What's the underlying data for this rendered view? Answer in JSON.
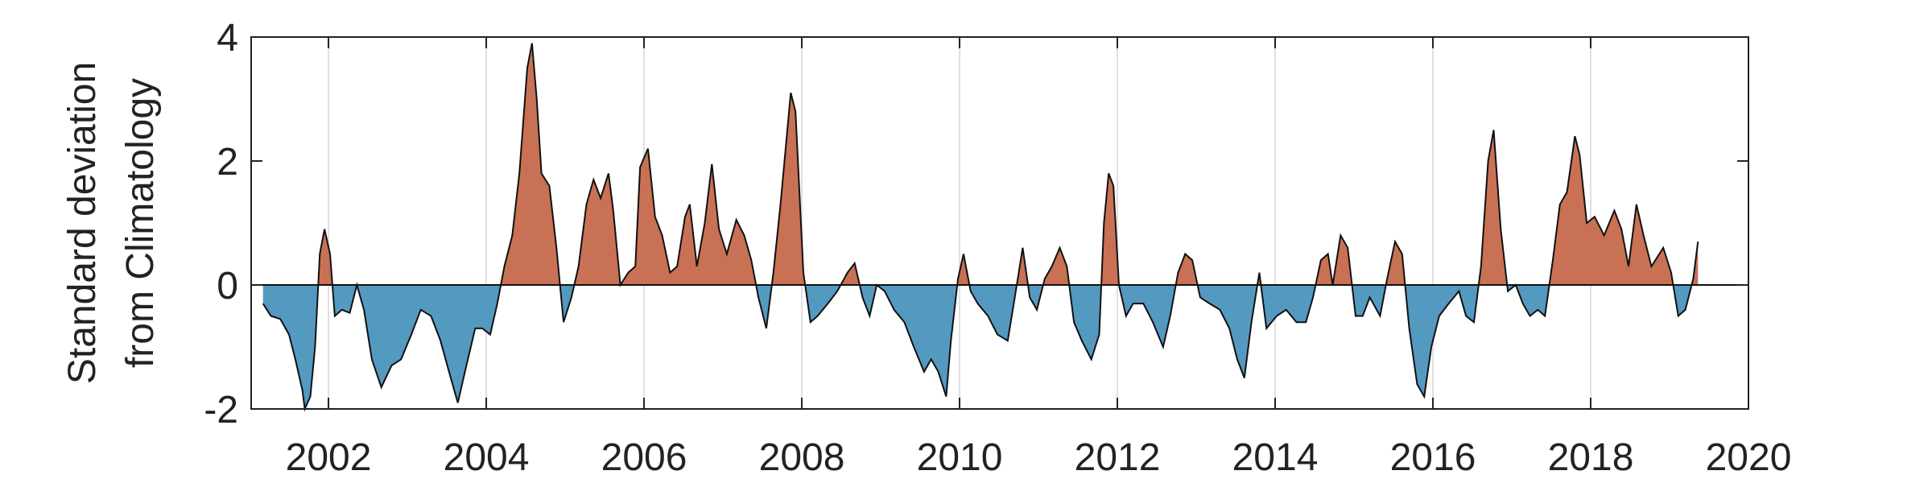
{
  "chart_data": {
    "type": "area",
    "ylabel": [
      "Standard deviation",
      "from Climatology"
    ],
    "xlim": [
      2001.02,
      2020
    ],
    "ylim": [
      -2,
      4
    ],
    "xticks": [
      2002,
      2004,
      2006,
      2008,
      2010,
      2012,
      2014,
      2016,
      2018,
      2020
    ],
    "yticks": [
      -2,
      0,
      2,
      4
    ],
    "grid": true,
    "positive_color": "#c87155",
    "negative_color": "#5499c0",
    "line_color": "#111111",
    "x": [
      2001.17,
      2001.27,
      2001.39,
      2001.5,
      2001.58,
      2001.67,
      2001.7,
      2001.77,
      2001.83,
      2001.89,
      2001.95,
      2002.02,
      2002.08,
      2002.17,
      2002.27,
      2002.36,
      2002.45,
      2002.55,
      2002.67,
      2002.8,
      2002.92,
      2003.05,
      2003.17,
      2003.3,
      2003.42,
      2003.55,
      2003.64,
      2003.73,
      2003.86,
      2003.95,
      2004.05,
      2004.14,
      2004.23,
      2004.33,
      2004.42,
      2004.52,
      2004.58,
      2004.64,
      2004.7,
      2004.8,
      2004.89,
      2004.98,
      2005.08,
      2005.17,
      2005.27,
      2005.36,
      2005.45,
      2005.55,
      2005.61,
      2005.7,
      2005.8,
      2005.89,
      2005.95,
      2006.05,
      2006.14,
      2006.23,
      2006.33,
      2006.42,
      2006.52,
      2006.58,
      2006.67,
      2006.77,
      2006.86,
      2006.95,
      2007.05,
      2007.17,
      2007.27,
      2007.36,
      2007.45,
      2007.55,
      2007.64,
      2007.73,
      2007.86,
      2007.92,
      2008.02,
      2008.11,
      2008.2,
      2008.33,
      2008.45,
      2008.58,
      2008.67,
      2008.77,
      2008.86,
      2008.95,
      2009.05,
      2009.17,
      2009.3,
      2009.42,
      2009.55,
      2009.64,
      2009.73,
      2009.83,
      2009.89,
      2009.98,
      2010.05,
      2010.14,
      2010.23,
      2010.36,
      2010.48,
      2010.61,
      2010.7,
      2010.8,
      2010.89,
      2010.98,
      2011.08,
      2011.17,
      2011.27,
      2011.36,
      2011.45,
      2011.55,
      2011.67,
      2011.77,
      2011.83,
      2011.89,
      2011.95,
      2012.02,
      2012.11,
      2012.2,
      2012.33,
      2012.45,
      2012.58,
      2012.67,
      2012.77,
      2012.86,
      2012.95,
      2013.05,
      2013.17,
      2013.3,
      2013.42,
      2013.52,
      2013.61,
      2013.7,
      2013.8,
      2013.89,
      2014.02,
      2014.14,
      2014.27,
      2014.39,
      2014.48,
      2014.58,
      2014.67,
      2014.73,
      2014.83,
      2014.92,
      2015.02,
      2015.11,
      2015.2,
      2015.33,
      2015.42,
      2015.52,
      2015.61,
      2015.7,
      2015.8,
      2015.89,
      2015.98,
      2016.08,
      2016.2,
      2016.33,
      2016.42,
      2016.52,
      2016.61,
      2016.7,
      2016.77,
      2016.86,
      2016.95,
      2017.05,
      2017.14,
      2017.23,
      2017.33,
      2017.42,
      2017.52,
      2017.61,
      2017.7,
      2017.8,
      2017.86,
      2017.95,
      2018.05,
      2018.17,
      2018.3,
      2018.39,
      2018.48,
      2018.58,
      2018.67,
      2018.77,
      2018.92,
      2019.02,
      2019.11,
      2019.2,
      2019.3,
      2019.36
    ],
    "values": [
      -0.3,
      -0.5,
      -0.55,
      -0.8,
      -1.2,
      -1.7,
      -2.0,
      -1.8,
      -1.0,
      0.5,
      0.9,
      0.5,
      -0.5,
      -0.4,
      -0.45,
      0.0,
      -0.4,
      -1.2,
      -1.65,
      -1.3,
      -1.2,
      -0.8,
      -0.4,
      -0.5,
      -0.9,
      -1.5,
      -1.9,
      -1.4,
      -0.7,
      -0.7,
      -0.8,
      -0.3,
      0.3,
      0.8,
      1.8,
      3.5,
      3.9,
      3.0,
      1.8,
      1.6,
      0.6,
      -0.6,
      -0.2,
      0.3,
      1.3,
      1.7,
      1.4,
      1.8,
      1.2,
      0.0,
      0.2,
      0.3,
      1.9,
      2.2,
      1.1,
      0.8,
      0.2,
      0.3,
      1.1,
      1.3,
      0.3,
      1.0,
      1.95,
      0.9,
      0.5,
      1.05,
      0.8,
      0.4,
      -0.2,
      -0.7,
      0.2,
      1.3,
      3.1,
      2.8,
      0.2,
      -0.6,
      -0.5,
      -0.3,
      -0.1,
      0.2,
      0.35,
      -0.2,
      -0.5,
      0.0,
      -0.1,
      -0.4,
      -0.6,
      -1.0,
      -1.4,
      -1.2,
      -1.4,
      -1.8,
      -0.9,
      0.1,
      0.5,
      -0.1,
      -0.3,
      -0.5,
      -0.8,
      -0.9,
      -0.2,
      0.6,
      -0.2,
      -0.4,
      0.1,
      0.3,
      0.6,
      0.3,
      -0.6,
      -0.9,
      -1.2,
      -0.8,
      1.0,
      1.8,
      1.6,
      0.0,
      -0.5,
      -0.3,
      -0.3,
      -0.6,
      -1.0,
      -0.5,
      0.2,
      0.5,
      0.4,
      -0.2,
      -0.3,
      -0.4,
      -0.7,
      -1.2,
      -1.5,
      -0.6,
      0.2,
      -0.7,
      -0.5,
      -0.4,
      -0.6,
      -0.6,
      -0.2,
      0.4,
      0.5,
      0.0,
      0.8,
      0.6,
      -0.5,
      -0.5,
      -0.2,
      -0.5,
      0.1,
      0.7,
      0.5,
      -0.7,
      -1.6,
      -1.8,
      -1.0,
      -0.5,
      -0.3,
      -0.1,
      -0.5,
      -0.6,
      0.3,
      2.0,
      2.5,
      0.9,
      -0.1,
      0.0,
      -0.3,
      -0.5,
      -0.4,
      -0.5,
      0.4,
      1.3,
      1.5,
      2.4,
      2.1,
      1.0,
      1.1,
      0.8,
      1.2,
      0.9,
      0.3,
      1.3,
      0.8,
      0.3,
      0.6,
      0.2,
      -0.5,
      -0.4,
      0.1,
      0.7
    ]
  }
}
